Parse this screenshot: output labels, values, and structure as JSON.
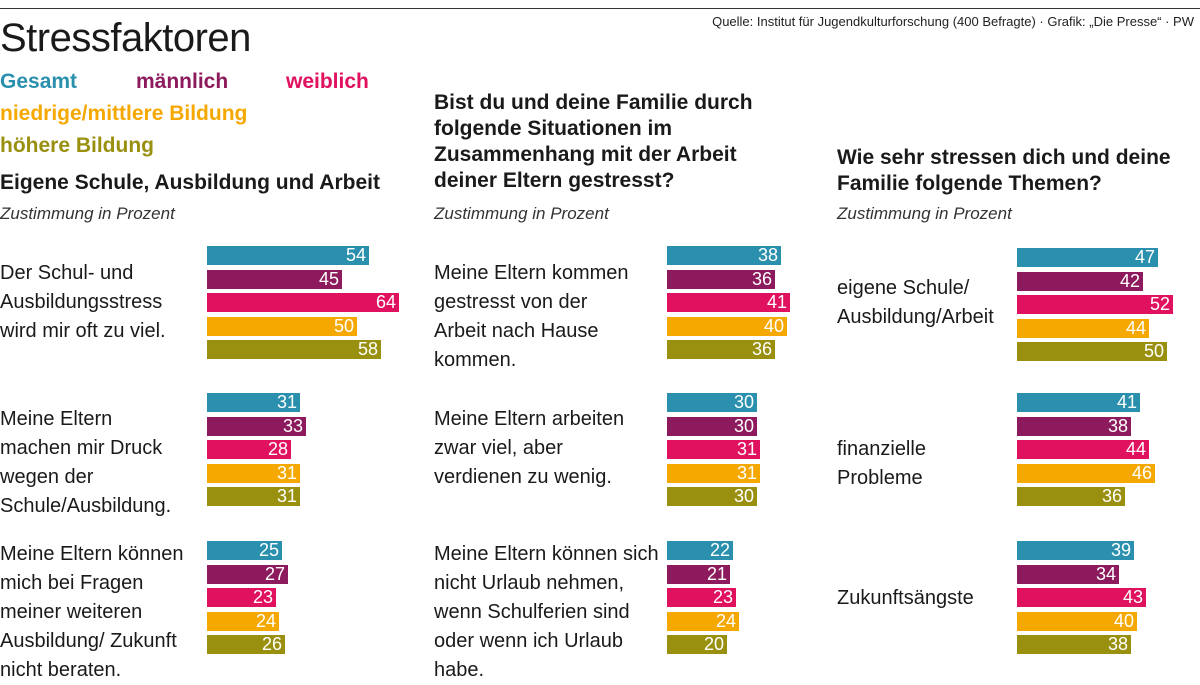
{
  "source": "Quelle: Institut für Jugendkulturforschung (400 Befragte) · Grafik: „Die Presse“ · PW",
  "title": "Stressfaktoren",
  "legend": [
    {
      "label": "Gesamt",
      "color": "#2a90ad"
    },
    {
      "label": "männlich",
      "color": "#8c1a5c"
    },
    {
      "label": "weiblich",
      "color": "#e0115f"
    },
    {
      "label": "niedrige/mittlere Bildung",
      "color": "#f5a800"
    },
    {
      "label": "höhere Bildung",
      "color": "#9a9010"
    }
  ],
  "chart_data": [
    {
      "type": "bar",
      "title": "Eigene Schule, Ausbildung und Arbeit",
      "subtitle": "Zustimmung in Prozent",
      "categories": [
        "Der Schul- und Ausbildungsstress wird mir oft zu viel.",
        "Meine Eltern machen mir Druck wegen der Schule/Ausbildung.",
        "Meine Eltern können mich bei Fragen meiner weiteren Ausbildung/ Zukunft nicht beraten."
      ],
      "series": [
        {
          "name": "Gesamt",
          "values": [
            54,
            31,
            25
          ]
        },
        {
          "name": "männlich",
          "values": [
            45,
            33,
            27
          ]
        },
        {
          "name": "weiblich",
          "values": [
            64,
            28,
            23
          ]
        },
        {
          "name": "niedrige/mittlere Bildung",
          "values": [
            50,
            31,
            24
          ]
        },
        {
          "name": "höhere Bildung",
          "values": [
            58,
            31,
            26
          ]
        }
      ]
    },
    {
      "type": "bar",
      "title": "Bist du und deine Familie durch folgende Situationen im Zusammenhang mit der Arbeit deiner Eltern gestresst?",
      "subtitle": "Zustimmung in Prozent",
      "categories": [
        "Meine Eltern kommen gestresst von der Arbeit nach Hause kommen.",
        "Meine Eltern arbeiten zwar viel, aber verdienen zu wenig.",
        "Meine Eltern können sich nicht Urlaub nehmen, wenn Schulferien sind oder wenn ich Urlaub habe."
      ],
      "series": [
        {
          "name": "Gesamt",
          "values": [
            38,
            30,
            22
          ]
        },
        {
          "name": "männlich",
          "values": [
            36,
            30,
            21
          ]
        },
        {
          "name": "weiblich",
          "values": [
            41,
            31,
            23
          ]
        },
        {
          "name": "niedrige/mittlere Bildung",
          "values": [
            40,
            31,
            24
          ]
        },
        {
          "name": "höhere Bildung",
          "values": [
            36,
            30,
            20
          ]
        }
      ]
    },
    {
      "type": "bar",
      "title": "Wie sehr stressen dich und deine Familie folgende Themen?",
      "subtitle": "Zustimmung in Prozent",
      "categories": [
        "eigene Schule/ Ausbildung/Arbeit",
        "finanzielle Probleme",
        "Zukunftsängste"
      ],
      "series": [
        {
          "name": "Gesamt",
          "values": [
            47,
            41,
            39
          ]
        },
        {
          "name": "männlich",
          "values": [
            42,
            38,
            34
          ]
        },
        {
          "name": "weiblich",
          "values": [
            52,
            44,
            43
          ]
        },
        {
          "name": "niedrige/mittlere Bildung",
          "values": [
            44,
            46,
            40
          ]
        },
        {
          "name": "höhere Bildung",
          "values": [
            50,
            36,
            38
          ]
        }
      ]
    }
  ]
}
